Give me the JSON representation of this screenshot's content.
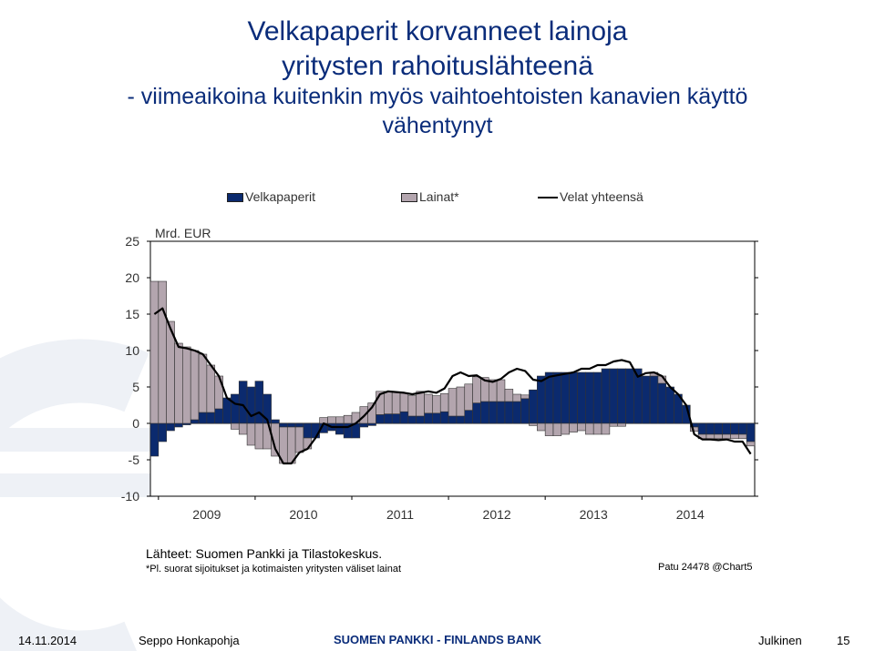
{
  "title": {
    "line1": "Velkapaperit korvanneet lainoja",
    "line2": "yritysten rahoituslähteenä",
    "line3": "- viimeaikoina kuitenkin myös vaihtoehtoisten kanavien käyttö",
    "line4": "vähentynyt"
  },
  "legend": {
    "bonds": "Velkapaperit",
    "loans": "Lainat*",
    "total": "Velat yhteensä"
  },
  "colors": {
    "bonds": "#0b2a6e",
    "loans": "#b3a5ae",
    "total": "#000000",
    "title": "#0a2c7a"
  },
  "chart_data": {
    "type": "bar",
    "stacked": true,
    "unit_label": "Mrd. EUR",
    "ylim": [
      -10,
      25
    ],
    "yticks": [
      25,
      20,
      15,
      10,
      5,
      0,
      -5,
      -10
    ],
    "x_tick_labels": [
      "2009",
      "2010",
      "2011",
      "2012",
      "2013",
      "2014"
    ],
    "x_start": "2008-12",
    "x_end": "2014-08",
    "frequency": "monthly",
    "series": [
      {
        "name": "Velkapaperit",
        "kind": "bar",
        "values": [
          -4.5,
          -2.5,
          -1,
          -0.5,
          -0.2,
          0.5,
          1.5,
          1.5,
          2,
          3.5,
          4,
          5.8,
          5,
          5.8,
          4,
          0.5,
          -0.5,
          -0.5,
          -0.5,
          -2,
          -2,
          -1.3,
          -1,
          -1.5,
          -2,
          -2,
          -0.5,
          -0.3,
          1.2,
          1.3,
          1.3,
          1.6,
          1,
          1,
          1.4,
          1.4,
          1.6,
          1,
          1,
          1.8,
          2.8,
          3,
          3,
          3,
          3,
          3,
          3.4,
          4.6,
          6.5,
          7,
          7,
          7,
          7,
          7,
          7,
          7,
          7.5,
          7.5,
          7.5,
          7.5,
          7.5,
          6.5,
          6.5,
          5.5,
          5,
          4,
          2.5,
          -0.5,
          -1.5,
          -1.5,
          -1.5,
          -1.5,
          -1.5,
          -1.5,
          -2.5
        ],
        "color_key": "bonds"
      },
      {
        "name": "Lainat*",
        "kind": "bar",
        "values": [
          19.5,
          19.5,
          14,
          11,
          10.5,
          9.5,
          8,
          6.5,
          4.5,
          0,
          -0.8,
          -1.5,
          -3,
          -3.5,
          -3.5,
          -4.5,
          -5,
          -5,
          -3.5,
          -1.5,
          0,
          0.8,
          0.9,
          0.9,
          1.1,
          1.5,
          2.3,
          2.8,
          3.2,
          3.1,
          3,
          2.6,
          2.8,
          3.4,
          2.6,
          2.4,
          2.5,
          3.8,
          4,
          3.6,
          3.6,
          3.3,
          3,
          3,
          1.7,
          1,
          0.5,
          -0.3,
          -1,
          -1.7,
          -1.7,
          -1.5,
          -1.2,
          -1,
          -1.5,
          -1.5,
          -1.5,
          -0.4,
          -0.4,
          0,
          0,
          0,
          0.5,
          1,
          0,
          0,
          0,
          -0.6,
          -0.6,
          -0.6,
          -0.6,
          -0.6,
          -0.6,
          -0.6,
          -0.6
        ],
        "color_key": "loans"
      },
      {
        "name": "Velat yhteensä",
        "kind": "line",
        "values": [
          15,
          15.8,
          13,
          10.5,
          10.3,
          10,
          9.5,
          8,
          6.5,
          3.5,
          2.7,
          2.5,
          1,
          1.5,
          0.5,
          -3.5,
          -5.5,
          -5.5,
          -4,
          -3.5,
          -2,
          0,
          -0.5,
          -0.5,
          -0.5,
          0,
          1,
          2.2,
          4,
          4.4,
          4.3,
          4.2,
          4,
          4.2,
          4.4,
          4.2,
          4.8,
          6.5,
          7,
          6.5,
          6.6,
          5.9,
          5.7,
          6.1,
          7,
          7.5,
          7.2,
          6,
          5.8,
          6.4,
          6.6,
          6.8,
          7,
          7.5,
          7.5,
          8,
          8,
          8.5,
          8.7,
          8.4,
          6.4,
          6.9,
          7,
          6.5,
          5,
          4,
          2.5,
          -1.5,
          -2.2,
          -2.2,
          -2.3,
          -2.2,
          -2.5,
          -2.5,
          -4.2
        ],
        "color_key": "total"
      }
    ]
  },
  "source": {
    "line1": "Lähteet: Suomen Pankki ja Tilastokeskus.",
    "line2": "*Pl. suorat sijoitukset ja kotimaisten yritysten väliset lainat",
    "chart_id": "Patu 24478 @Chart5"
  },
  "footer": {
    "date": "14.11.2014",
    "author": "Seppo Honkapohja",
    "bank": "SUOMEN PANKKI - FINLANDS BANK",
    "classification": "Julkinen",
    "page": "15"
  }
}
